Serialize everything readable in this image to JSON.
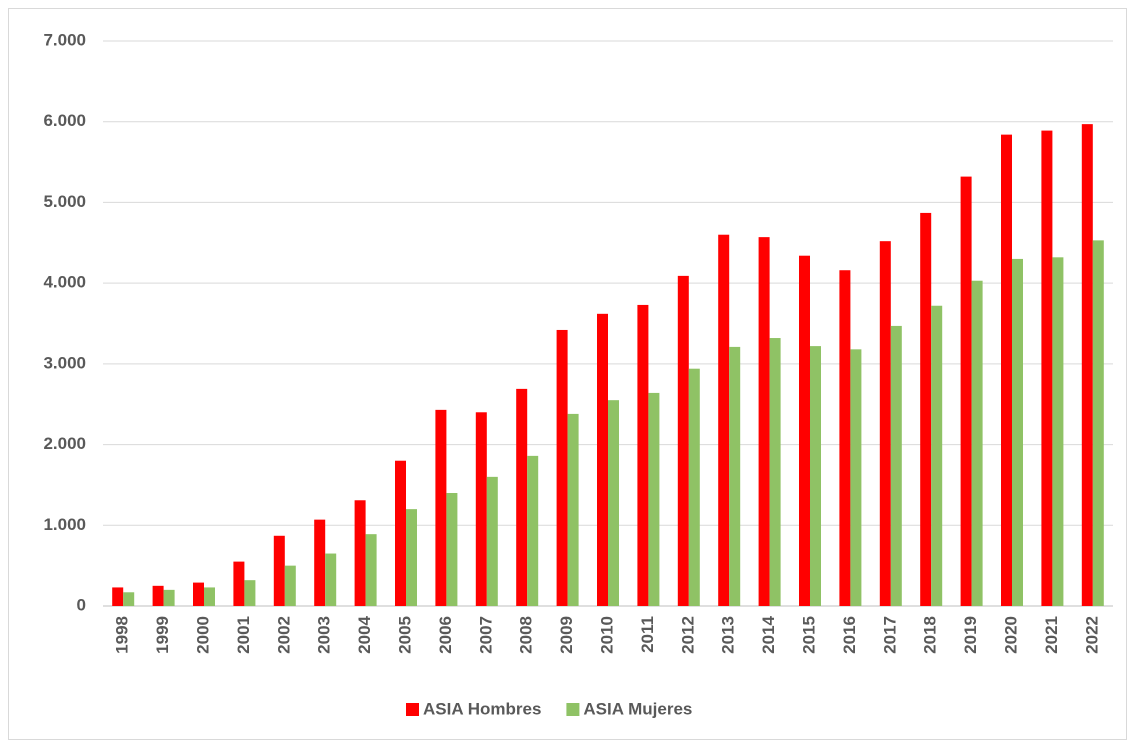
{
  "chart_data": {
    "type": "bar",
    "categories": [
      "1998",
      "1999",
      "2000",
      "2001",
      "2002",
      "2003",
      "2004",
      "2005",
      "2006",
      "2007",
      "2008",
      "2009",
      "2010",
      "2011",
      "2012",
      "2013",
      "2014",
      "2015",
      "2016",
      "2017",
      "2018",
      "2019",
      "2020",
      "2021",
      "2022"
    ],
    "series": [
      {
        "name": "ASIA Hombres",
        "color": "#ff0000",
        "values": [
          230,
          250,
          290,
          550,
          870,
          1070,
          1310,
          1800,
          2430,
          2400,
          2690,
          3420,
          3620,
          3730,
          4090,
          4600,
          4570,
          4340,
          4160,
          4520,
          4870,
          5320,
          5840,
          5890,
          5970
        ]
      },
      {
        "name": "ASIA Mujeres",
        "color": "#8fc265",
        "values": [
          170,
          200,
          230,
          320,
          500,
          650,
          890,
          1200,
          1400,
          1600,
          1860,
          2380,
          2550,
          2640,
          2940,
          3210,
          3320,
          3220,
          3180,
          3470,
          3720,
          4030,
          4300,
          4320,
          4530
        ]
      }
    ],
    "ylim": [
      0,
      7000
    ],
    "yticks": [
      0,
      {
        "value": 1000,
        "label": "1.000"
      },
      {
        "value": 2000,
        "label": "2.000"
      },
      {
        "value": 3000,
        "label": "3.000"
      },
      {
        "value": 4000,
        "label": "4.000"
      },
      {
        "value": 5000,
        "label": "5.000"
      },
      {
        "value": 6000,
        "label": "6.000"
      },
      {
        "value": 7000,
        "label": "7.000"
      }
    ],
    "grid": true,
    "legend": "bottom"
  }
}
